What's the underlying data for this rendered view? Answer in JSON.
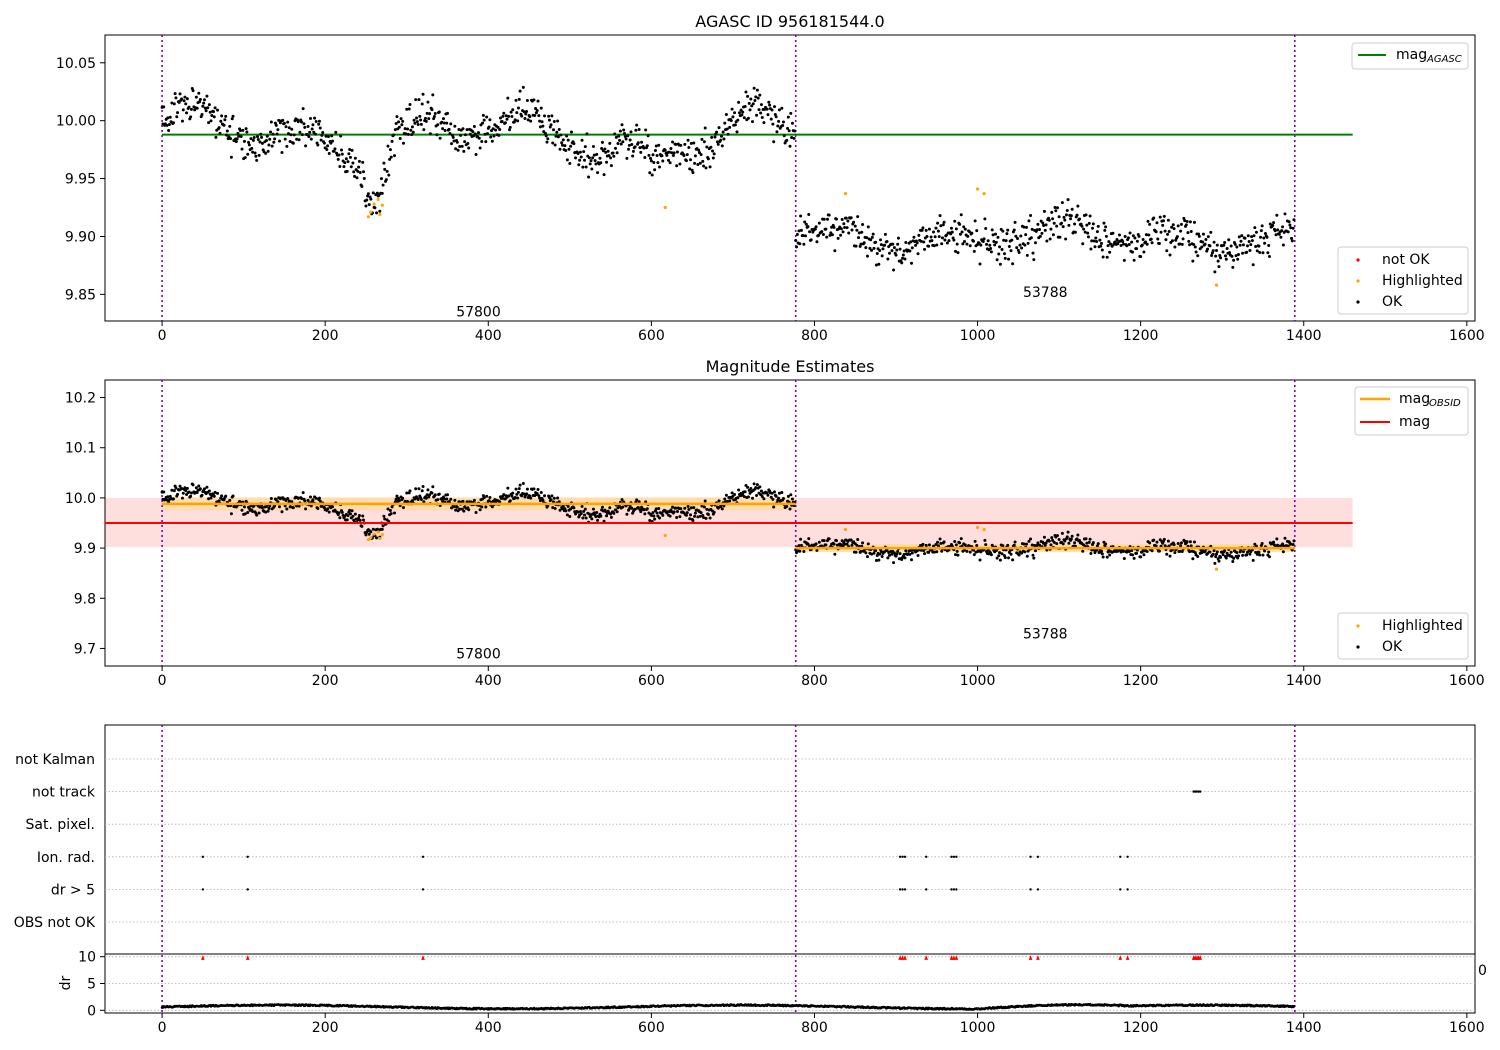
{
  "chart_data": [
    {
      "type": "scatter",
      "title": "AGASC ID 956181544.0",
      "xlim": [
        -70,
        1610
      ],
      "ylim": [
        9.827,
        10.074
      ],
      "x_ticks": [
        0,
        200,
        400,
        600,
        800,
        1000,
        1200,
        1400,
        1600
      ],
      "y_ticks": [
        9.85,
        9.9,
        9.95,
        10.0,
        10.05
      ],
      "y_tick_labels": [
        "9.85",
        "9.90",
        "9.95",
        "10.00",
        "10.05"
      ],
      "x_tick_labels": [
        "0",
        "200",
        "400",
        "600",
        "800",
        "1000",
        "1200",
        "1400",
        "1600"
      ],
      "obsid_boundaries": [
        0,
        777,
        1389
      ],
      "obsid_labels": [
        {
          "text": "57800",
          "x": 388,
          "y": 9.835
        },
        {
          "text": "53788",
          "x": 1083,
          "y": 9.852
        }
      ],
      "reference_lines": [
        {
          "name": "mag",
          "subscript": "AGASC",
          "y": 9.988,
          "x_range": [
            0,
            1460
          ],
          "color": "#008000"
        }
      ],
      "segments": [
        {
          "x_start": 0,
          "x_end": 777,
          "mean": 9.988,
          "amplitude": 0.018,
          "noise": 0.013
        },
        {
          "x_start": 777,
          "x_end": 1389,
          "mean": 9.9,
          "amplitude": 0.01,
          "noise": 0.013
        }
      ],
      "dips": [
        {
          "center": 262,
          "width": 18,
          "depth": 0.042
        },
        {
          "center": 600,
          "width": 25,
          "depth": 0.02
        }
      ],
      "highlighted_points": [
        {
          "x": 253,
          "y": 9.917
        },
        {
          "x": 256,
          "y": 9.921
        },
        {
          "x": 260,
          "y": 9.928
        },
        {
          "x": 265,
          "y": 9.932
        },
        {
          "x": 267,
          "y": 9.919
        },
        {
          "x": 270,
          "y": 9.927
        },
        {
          "x": 617,
          "y": 9.925
        },
        {
          "x": 838,
          "y": 9.937
        },
        {
          "x": 1000,
          "y": 9.941
        },
        {
          "x": 1008,
          "y": 9.937
        },
        {
          "x": 1293,
          "y": 9.858
        }
      ],
      "legends": [
        {
          "position": "top-right",
          "entries": [
            {
              "label": "mag",
              "subscript": "AGASC",
              "marker": "line",
              "color": "#008000"
            }
          ]
        },
        {
          "position": "bottom-right",
          "entries": [
            {
              "label": "not OK",
              "marker": "dot",
              "color": "#ff0000"
            },
            {
              "label": "Highlighted",
              "marker": "dot",
              "color": "#ffa500"
            },
            {
              "label": "OK",
              "marker": "dot",
              "color": "#000000"
            }
          ]
        }
      ]
    },
    {
      "type": "scatter",
      "title": "Magnitude Estimates",
      "xlim": [
        -70,
        1610
      ],
      "ylim": [
        9.665,
        10.235
      ],
      "x_ticks": [
        0,
        200,
        400,
        600,
        800,
        1000,
        1200,
        1400,
        1600
      ],
      "x_tick_labels": [
        "0",
        "200",
        "400",
        "600",
        "800",
        "1000",
        "1200",
        "1400",
        "1600"
      ],
      "y_ticks": [
        9.7,
        9.8,
        9.9,
        10.0,
        10.1,
        10.2
      ],
      "y_tick_labels": [
        "9.7",
        "9.8",
        "9.9",
        "10.0",
        "10.1",
        "10.2"
      ],
      "obsid_boundaries": [
        0,
        777,
        1389
      ],
      "obsid_labels": [
        {
          "text": "57800",
          "x": 388,
          "y": 9.69
        },
        {
          "text": "53788",
          "x": 1083,
          "y": 9.73
        }
      ],
      "mag_line": {
        "name": "mag",
        "y": 9.95,
        "band": [
          9.902,
          10.0
        ],
        "x_range": [
          -70,
          1460
        ],
        "color": "#ff0000"
      },
      "obsid_mag_lines": [
        {
          "name": "mag",
          "subscript": "OBSID",
          "x_range": [
            0,
            777
          ],
          "y": 9.988,
          "band": [
            9.975,
            10.001
          ],
          "color": "#ffa500"
        },
        {
          "name": "mag",
          "subscript": "OBSID",
          "x_range": [
            777,
            1389
          ],
          "y": 9.9,
          "band": [
            9.892,
            9.908
          ],
          "color": "#ffa500"
        }
      ],
      "legends": [
        {
          "position": "top-right",
          "entries": [
            {
              "label": "mag",
              "subscript": "OBSID",
              "marker": "line",
              "color": "#ffa500"
            },
            {
              "label": "mag",
              "marker": "line",
              "color": "#ff0000"
            }
          ]
        },
        {
          "position": "bottom-right",
          "entries": [
            {
              "label": "Highlighted",
              "marker": "dot",
              "color": "#ffa500"
            },
            {
              "label": "OK",
              "marker": "dot",
              "color": "#000000"
            }
          ]
        }
      ]
    },
    {
      "type": "scatter",
      "title": "",
      "xlim": [
        -70,
        1610
      ],
      "flag_labels": [
        "not Kalman",
        "not track",
        "Sat. pixel.",
        "Ion. rad.",
        "dr > 5",
        "OBS not OK"
      ],
      "flag_points": {
        "not Kalman": [],
        "not track": [
          1265,
          1267,
          1269,
          1271,
          1273
        ],
        "Sat. pixel.": [],
        "Ion. rad.": [
          50,
          105,
          320,
          905,
          908,
          911,
          937,
          968,
          971,
          974,
          1065,
          1074,
          1175,
          1184
        ],
        "dr > 5": [
          50,
          105,
          320,
          905,
          908,
          911,
          937,
          968,
          971,
          974,
          1065,
          1074,
          1175,
          1184
        ],
        "OBS not OK": []
      },
      "obsid_boundaries": [
        0,
        777,
        1389
      ],
      "dr_axis": {
        "ylabel": "dr",
        "ylim": [
          -0.5,
          10.5
        ],
        "y_ticks": [
          0,
          5,
          10
        ],
        "y_tick_labels": [
          "0",
          "5",
          "10"
        ],
        "clipped_points": [
          50,
          105,
          320,
          905,
          908,
          911,
          937,
          968,
          971,
          974,
          1065,
          1074,
          1175,
          1184,
          1265,
          1267,
          1269,
          1271,
          1273
        ],
        "x_ticks": [
          0,
          200,
          400,
          600,
          800,
          1000,
          1200,
          1400,
          1600
        ],
        "x_tick_labels": [
          "0",
          "200",
          "400",
          "600",
          "800",
          "1000",
          "1200",
          "1400",
          "1600"
        ],
        "overflow_label": "0"
      }
    }
  ]
}
